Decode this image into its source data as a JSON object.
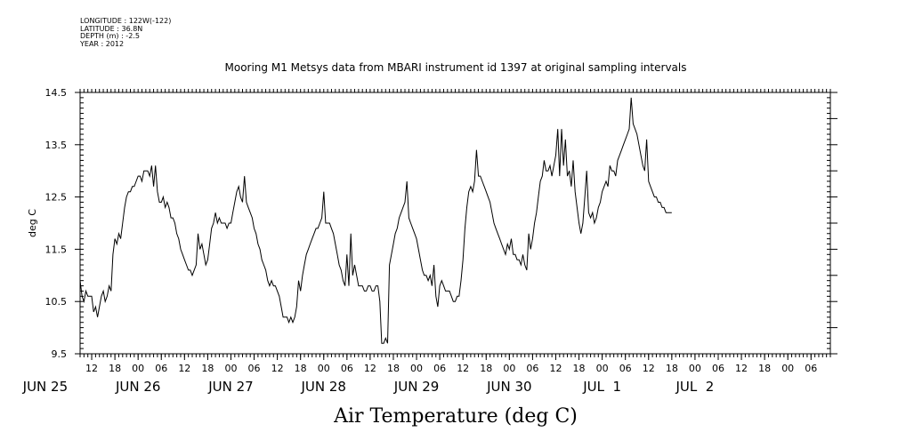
{
  "header": {
    "longitude": "LONGITUDE : 122W(-122)",
    "latitude": "LATITUDE : 36.8N",
    "depth": "DEPTH (m) : -2.5",
    "year": "YEAR : 2012"
  },
  "chart_data": {
    "type": "line",
    "title": "Mooring M1 Metsys data from MBARI instrument id 1397 at original sampling intervals",
    "xlabel": "Air Temperature (deg C)",
    "ylabel": "deg C",
    "ylim": [
      9.5,
      14.5
    ],
    "yticks": [
      "9.5",
      "10.5",
      "11.5",
      "12.5",
      "13.5",
      "14.5"
    ],
    "xlim_hours": [
      9,
      203
    ],
    "hour_ticks": [
      "12",
      "18",
      "00",
      "06",
      "12",
      "18",
      "00",
      "06",
      "12",
      "18",
      "00",
      "06",
      "12",
      "18",
      "00",
      "06",
      "12",
      "18",
      "00",
      "06",
      "12",
      "18",
      "00",
      "06",
      "12",
      "18",
      "00",
      "06",
      "12",
      "18",
      "00",
      "06"
    ],
    "day_labels": [
      "JUN 25",
      "JUN 26",
      "JUN 27",
      "JUN 28",
      "JUN 29",
      "JUN 30",
      "JUL  1",
      "JUL  2"
    ],
    "x_units": "hours since 2012-06-25 00:00",
    "series": [
      {
        "name": "",
        "points": [
          [
            9.0,
            10.9
          ],
          [
            9.5,
            10.6
          ],
          [
            10.0,
            10.5
          ],
          [
            10.5,
            10.7
          ],
          [
            11.0,
            10.6
          ],
          [
            11.5,
            10.6
          ],
          [
            12.0,
            10.6
          ],
          [
            12.5,
            10.3
          ],
          [
            13.0,
            10.4
          ],
          [
            13.5,
            10.2
          ],
          [
            14.0,
            10.4
          ],
          [
            14.5,
            10.6
          ],
          [
            15.0,
            10.7
          ],
          [
            15.5,
            10.5
          ],
          [
            16.0,
            10.6
          ],
          [
            16.5,
            10.8
          ],
          [
            17.0,
            10.7
          ],
          [
            17.5,
            11.4
          ],
          [
            18.0,
            11.7
          ],
          [
            18.5,
            11.6
          ],
          [
            19.0,
            11.8
          ],
          [
            19.5,
            11.7
          ],
          [
            20.0,
            12.0
          ],
          [
            20.5,
            12.3
          ],
          [
            21.0,
            12.5
          ],
          [
            21.5,
            12.6
          ],
          [
            22.0,
            12.6
          ],
          [
            22.5,
            12.7
          ],
          [
            23.0,
            12.7
          ],
          [
            23.5,
            12.8
          ],
          [
            24.0,
            12.9
          ],
          [
            24.5,
            12.9
          ],
          [
            25.0,
            12.8
          ],
          [
            25.5,
            13.0
          ],
          [
            26.0,
            13.0
          ],
          [
            26.5,
            13.0
          ],
          [
            27.0,
            12.9
          ],
          [
            27.5,
            13.1
          ],
          [
            28.0,
            12.7
          ],
          [
            28.5,
            13.1
          ],
          [
            29.0,
            12.6
          ],
          [
            29.5,
            12.4
          ],
          [
            30.0,
            12.4
          ],
          [
            30.5,
            12.5
          ],
          [
            31.0,
            12.3
          ],
          [
            31.5,
            12.4
          ],
          [
            32.0,
            12.3
          ],
          [
            32.5,
            12.1
          ],
          [
            33.0,
            12.1
          ],
          [
            33.5,
            12.0
          ],
          [
            34.0,
            11.8
          ],
          [
            34.5,
            11.7
          ],
          [
            35.0,
            11.5
          ],
          [
            35.5,
            11.4
          ],
          [
            36.0,
            11.3
          ],
          [
            36.5,
            11.2
          ],
          [
            37.0,
            11.1
          ],
          [
            37.5,
            11.1
          ],
          [
            38.0,
            11.0
          ],
          [
            38.5,
            11.1
          ],
          [
            39.0,
            11.2
          ],
          [
            39.5,
            11.8
          ],
          [
            40.0,
            11.5
          ],
          [
            40.5,
            11.6
          ],
          [
            41.0,
            11.4
          ],
          [
            41.5,
            11.2
          ],
          [
            42.0,
            11.3
          ],
          [
            42.5,
            11.6
          ],
          [
            43.0,
            11.9
          ],
          [
            43.5,
            12.0
          ],
          [
            44.0,
            12.2
          ],
          [
            44.5,
            12.0
          ],
          [
            45.0,
            12.1
          ],
          [
            45.5,
            12.0
          ],
          [
            46.0,
            12.0
          ],
          [
            46.5,
            12.0
          ],
          [
            47.0,
            11.9
          ],
          [
            47.5,
            12.0
          ],
          [
            48.0,
            12.0
          ],
          [
            48.5,
            12.2
          ],
          [
            49.0,
            12.4
          ],
          [
            49.5,
            12.6
          ],
          [
            50.0,
            12.7
          ],
          [
            50.5,
            12.5
          ],
          [
            51.0,
            12.4
          ],
          [
            51.5,
            12.9
          ],
          [
            52.0,
            12.4
          ],
          [
            52.5,
            12.3
          ],
          [
            53.0,
            12.2
          ],
          [
            53.5,
            12.1
          ],
          [
            54.0,
            11.9
          ],
          [
            54.5,
            11.8
          ],
          [
            55.0,
            11.6
          ],
          [
            55.5,
            11.5
          ],
          [
            56.0,
            11.3
          ],
          [
            56.5,
            11.2
          ],
          [
            57.0,
            11.1
          ],
          [
            57.5,
            10.9
          ],
          [
            58.0,
            10.8
          ],
          [
            58.5,
            10.9
          ],
          [
            59.0,
            10.8
          ],
          [
            59.5,
            10.8
          ],
          [
            60.0,
            10.7
          ],
          [
            60.5,
            10.6
          ],
          [
            61.0,
            10.4
          ],
          [
            61.5,
            10.2
          ],
          [
            62.0,
            10.2
          ],
          [
            62.5,
            10.2
          ],
          [
            63.0,
            10.1
          ],
          [
            63.5,
            10.2
          ],
          [
            64.0,
            10.1
          ],
          [
            64.5,
            10.2
          ],
          [
            65.0,
            10.4
          ],
          [
            65.5,
            10.9
          ],
          [
            66.0,
            10.7
          ],
          [
            66.5,
            11.0
          ],
          [
            67.0,
            11.2
          ],
          [
            67.5,
            11.4
          ],
          [
            68.0,
            11.5
          ],
          [
            68.5,
            11.6
          ],
          [
            69.0,
            11.7
          ],
          [
            69.5,
            11.8
          ],
          [
            70.0,
            11.9
          ],
          [
            70.5,
            11.9
          ],
          [
            71.0,
            12.0
          ],
          [
            71.5,
            12.1
          ],
          [
            72.0,
            12.6
          ],
          [
            72.5,
            12.0
          ],
          [
            73.0,
            12.0
          ],
          [
            73.5,
            12.0
          ],
          [
            74.0,
            11.9
          ],
          [
            74.5,
            11.8
          ],
          [
            75.0,
            11.6
          ],
          [
            75.5,
            11.4
          ],
          [
            76.0,
            11.2
          ],
          [
            76.5,
            11.1
          ],
          [
            77.0,
            10.9
          ],
          [
            77.5,
            10.8
          ],
          [
            78.0,
            11.4
          ],
          [
            78.5,
            10.8
          ],
          [
            79.0,
            11.8
          ],
          [
            79.5,
            11.0
          ],
          [
            80.0,
            11.2
          ],
          [
            80.5,
            11.0
          ],
          [
            81.0,
            10.8
          ],
          [
            81.5,
            10.8
          ],
          [
            82.0,
            10.8
          ],
          [
            82.5,
            10.7
          ],
          [
            83.0,
            10.7
          ],
          [
            83.5,
            10.8
          ],
          [
            84.0,
            10.8
          ],
          [
            84.5,
            10.7
          ],
          [
            85.0,
            10.7
          ],
          [
            85.5,
            10.8
          ],
          [
            86.0,
            10.8
          ],
          [
            86.5,
            10.5
          ],
          [
            87.0,
            9.7
          ],
          [
            87.5,
            9.7
          ],
          [
            88.0,
            9.8
          ],
          [
            88.5,
            9.7
          ],
          [
            89.0,
            11.2
          ],
          [
            89.5,
            11.4
          ],
          [
            90.0,
            11.6
          ],
          [
            90.5,
            11.8
          ],
          [
            91.0,
            11.9
          ],
          [
            91.5,
            12.1
          ],
          [
            92.0,
            12.2
          ],
          [
            92.5,
            12.3
          ],
          [
            93.0,
            12.4
          ],
          [
            93.5,
            12.8
          ],
          [
            94.0,
            12.1
          ],
          [
            94.5,
            12.0
          ],
          [
            95.0,
            11.9
          ],
          [
            95.5,
            11.8
          ],
          [
            96.0,
            11.7
          ],
          [
            96.5,
            11.5
          ],
          [
            97.0,
            11.3
          ],
          [
            97.5,
            11.1
          ],
          [
            98.0,
            11.0
          ],
          [
            98.5,
            11.0
          ],
          [
            99.0,
            10.9
          ],
          [
            99.5,
            11.0
          ],
          [
            100.0,
            10.8
          ],
          [
            100.5,
            11.2
          ],
          [
            101.0,
            10.6
          ],
          [
            101.5,
            10.4
          ],
          [
            102.0,
            10.8
          ],
          [
            102.5,
            10.9
          ],
          [
            103.0,
            10.8
          ],
          [
            103.5,
            10.7
          ],
          [
            104.0,
            10.7
          ],
          [
            104.5,
            10.7
          ],
          [
            105.0,
            10.6
          ],
          [
            105.5,
            10.5
          ],
          [
            106.0,
            10.5
          ],
          [
            106.5,
            10.6
          ],
          [
            107.0,
            10.6
          ],
          [
            107.5,
            10.9
          ],
          [
            108.0,
            11.3
          ],
          [
            108.5,
            11.9
          ],
          [
            109.0,
            12.3
          ],
          [
            109.5,
            12.6
          ],
          [
            110.0,
            12.7
          ],
          [
            110.5,
            12.6
          ],
          [
            111.0,
            12.8
          ],
          [
            111.5,
            13.4
          ],
          [
            112.0,
            12.9
          ],
          [
            112.5,
            12.9
          ],
          [
            113.0,
            12.8
          ],
          [
            113.5,
            12.7
          ],
          [
            114.0,
            12.6
          ],
          [
            114.5,
            12.5
          ],
          [
            115.0,
            12.4
          ],
          [
            115.5,
            12.2
          ],
          [
            116.0,
            12.0
          ],
          [
            116.5,
            11.9
          ],
          [
            117.0,
            11.8
          ],
          [
            117.5,
            11.7
          ],
          [
            118.0,
            11.6
          ],
          [
            118.5,
            11.5
          ],
          [
            119.0,
            11.4
          ],
          [
            119.5,
            11.6
          ],
          [
            120.0,
            11.5
          ],
          [
            120.5,
            11.7
          ],
          [
            121.0,
            11.4
          ],
          [
            121.5,
            11.4
          ],
          [
            122.0,
            11.3
          ],
          [
            122.5,
            11.3
          ],
          [
            123.0,
            11.2
          ],
          [
            123.5,
            11.4
          ],
          [
            124.0,
            11.2
          ],
          [
            124.5,
            11.1
          ],
          [
            125.0,
            11.8
          ],
          [
            125.5,
            11.5
          ],
          [
            126.0,
            11.7
          ],
          [
            126.5,
            12.0
          ],
          [
            127.0,
            12.2
          ],
          [
            127.5,
            12.5
          ],
          [
            128.0,
            12.8
          ],
          [
            128.5,
            12.9
          ],
          [
            129.0,
            13.2
          ],
          [
            129.5,
            13.0
          ],
          [
            130.0,
            13.0
          ],
          [
            130.5,
            13.1
          ],
          [
            131.0,
            12.9
          ],
          [
            131.5,
            13.1
          ],
          [
            132.0,
            13.3
          ],
          [
            132.5,
            13.8
          ],
          [
            133.0,
            12.9
          ],
          [
            133.5,
            13.8
          ],
          [
            134.0,
            13.1
          ],
          [
            134.5,
            13.6
          ],
          [
            135.0,
            12.9
          ],
          [
            135.5,
            13.0
          ],
          [
            136.0,
            12.7
          ],
          [
            136.5,
            13.2
          ],
          [
            137.0,
            12.6
          ],
          [
            137.5,
            12.3
          ],
          [
            138.0,
            12.0
          ],
          [
            138.5,
            11.8
          ],
          [
            139.0,
            12.0
          ],
          [
            139.5,
            12.5
          ],
          [
            140.0,
            13.0
          ],
          [
            140.5,
            12.2
          ],
          [
            141.0,
            12.1
          ],
          [
            141.5,
            12.2
          ],
          [
            142.0,
            12.0
          ],
          [
            142.5,
            12.1
          ],
          [
            143.0,
            12.3
          ],
          [
            143.5,
            12.4
          ],
          [
            144.0,
            12.6
          ],
          [
            144.5,
            12.7
          ],
          [
            145.0,
            12.8
          ],
          [
            145.5,
            12.7
          ],
          [
            146.0,
            13.1
          ],
          [
            146.5,
            13.0
          ],
          [
            147.0,
            13.0
          ],
          [
            147.5,
            12.9
          ],
          [
            148.0,
            13.2
          ],
          [
            148.5,
            13.3
          ],
          [
            149.0,
            13.4
          ],
          [
            149.5,
            13.5
          ],
          [
            150.0,
            13.6
          ],
          [
            150.5,
            13.7
          ],
          [
            151.0,
            13.8
          ],
          [
            151.5,
            14.4
          ],
          [
            152.0,
            13.9
          ],
          [
            152.5,
            13.8
          ],
          [
            153.0,
            13.7
          ],
          [
            153.5,
            13.5
          ],
          [
            154.0,
            13.3
          ],
          [
            154.5,
            13.1
          ],
          [
            155.0,
            13.0
          ],
          [
            155.5,
            13.6
          ],
          [
            156.0,
            12.8
          ],
          [
            156.5,
            12.7
          ],
          [
            157.0,
            12.6
          ],
          [
            157.5,
            12.5
          ],
          [
            158.0,
            12.5
          ],
          [
            158.5,
            12.4
          ],
          [
            159.0,
            12.4
          ],
          [
            159.5,
            12.3
          ],
          [
            160.0,
            12.3
          ],
          [
            160.5,
            12.2
          ],
          [
            161.0,
            12.2
          ],
          [
            161.5,
            12.2
          ],
          [
            162.0,
            12.2
          ]
        ]
      }
    ]
  }
}
